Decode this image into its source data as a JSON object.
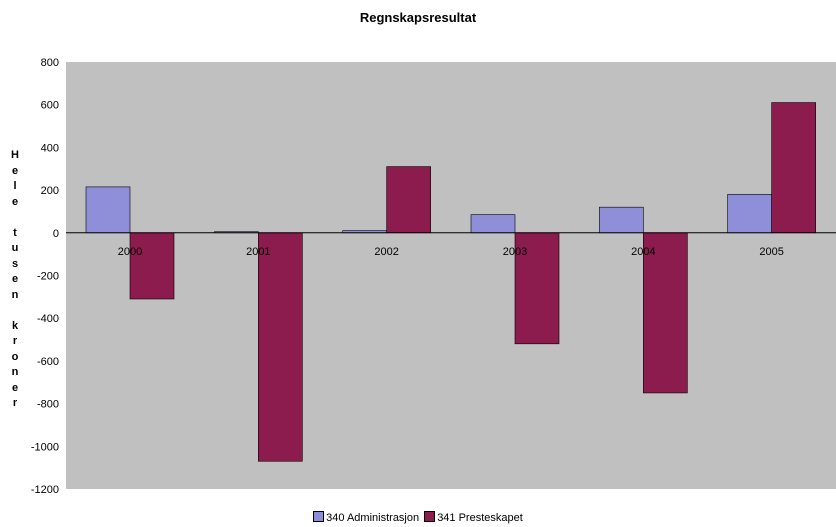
{
  "chart_data": {
    "type": "bar",
    "title": "Regnskapsresultat",
    "ylabel": "Hele tusen kroner",
    "xlabel": "",
    "categories": [
      "2000",
      "2001",
      "2002",
      "2003",
      "2004",
      "2005"
    ],
    "series": [
      {
        "name": "340 Administrasjon",
        "color": "#8F8FD9",
        "values": [
          215,
          5,
          10,
          85,
          120,
          180
        ]
      },
      {
        "name": "341 Presteskapet",
        "color": "#8C1B4E",
        "values": [
          -310,
          -1070,
          310,
          -520,
          -750,
          610
        ]
      }
    ],
    "ylim": [
      -1200,
      800
    ],
    "yticks": [
      800,
      600,
      400,
      200,
      0,
      -200,
      -400,
      -600,
      -800,
      -1000,
      -1200
    ],
    "grid": false,
    "plot_background": "#C0C0C0",
    "legend": "bottom"
  }
}
